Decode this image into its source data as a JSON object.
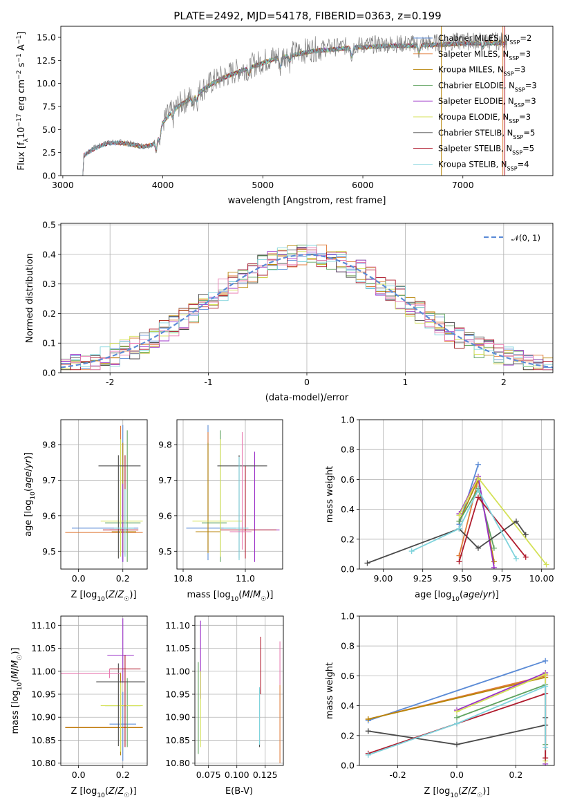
{
  "figure_title": "PLATE=2492, MJD=54178, FIBERID=0363, z=0.199",
  "colors": {
    "Chabrier MILES": "#5b8bd6",
    "Salpeter MILES": "#e07b39",
    "Kroupa MILES": "#b8860b",
    "Chabrier ELODIE": "#5fa35f",
    "Salpeter ELODIE": "#9b30c8",
    "Kroupa ELODIE": "#d4e157",
    "Chabrier STELIB": "#4a4a4a",
    "Salpeter STELIB": "#b01c2e",
    "Kroupa STELIB": "#7fd3dc",
    "observed": "#808080",
    "normal": "#5b8bd6",
    "pink": "#e879b0"
  },
  "chart_data": [
    {
      "type": "line",
      "name": "spectrum",
      "xlabel": "wavelength [Angstrom, rest frame]",
      "ylabel": "Flux [f_λ10^-17 erg cm^-2 s^-1 A^-1]",
      "xlim": [
        2980,
        7900
      ],
      "ylim": [
        0,
        16.2
      ],
      "xticks": [
        3000,
        4000,
        5000,
        6000,
        7000
      ],
      "yticks": [
        0.0,
        2.5,
        5.0,
        7.5,
        10.0,
        12.5,
        15.0
      ],
      "continuum": [
        [
          3200,
          0
        ],
        [
          3210,
          2.2
        ],
        [
          3300,
          2.9
        ],
        [
          3450,
          3.6
        ],
        [
          3600,
          3.6
        ],
        [
          3700,
          3.4
        ],
        [
          3800,
          3.2
        ],
        [
          3900,
          3.4
        ],
        [
          3950,
          4.5
        ],
        [
          4000,
          5.8
        ],
        [
          4100,
          7.2
        ],
        [
          4300,
          8.7
        ],
        [
          4500,
          10.2
        ],
        [
          4700,
          11.2
        ],
        [
          4900,
          12.0
        ],
        [
          5100,
          12.8
        ],
        [
          5300,
          13.3
        ],
        [
          5500,
          13.7
        ],
        [
          5700,
          13.9
        ],
        [
          5900,
          14.1
        ],
        [
          6100,
          14.2
        ],
        [
          6300,
          14.3
        ],
        [
          6500,
          14.3
        ],
        [
          6700,
          14.4
        ],
        [
          6900,
          14.5
        ],
        [
          7100,
          14.6
        ],
        [
          7300,
          14.6
        ],
        [
          7400,
          14.6
        ]
      ],
      "legend": [
        {
          "label": "Chabrier MILES, N",
          "n": "=2"
        },
        {
          "label": "Salpeter MILES, N",
          "n": "=3"
        },
        {
          "label": "Kroupa MILES, N",
          "n": "=3"
        },
        {
          "label": "Chabrier ELODIE, N",
          "n": "=3"
        },
        {
          "label": "Salpeter ELODIE, N",
          "n": "=3"
        },
        {
          "label": "Kroupa ELODIE, N",
          "n": "=3"
        },
        {
          "label": "Chabrier STELIB, N",
          "n": "=5"
        },
        {
          "label": "Salpeter STELIB, N",
          "n": "=5"
        },
        {
          "label": "Kroupa STELIB, N",
          "n": "=4"
        }
      ],
      "legend_sub": "SSP",
      "legend_placement": "right"
    },
    {
      "type": "histogram",
      "name": "residuals",
      "xlabel": "(data-model)/error",
      "ylabel": "Normed distribution",
      "xlim": [
        -2.5,
        2.5
      ],
      "ylim": [
        0,
        0.505
      ],
      "xticks": [
        -2,
        -1,
        0,
        1,
        2
      ],
      "yticks": [
        0.0,
        0.1,
        0.2,
        0.3,
        0.4,
        0.5
      ],
      "bin_width": 0.1,
      "legend_label": "N(0, 1)",
      "legend_placement": "top-right",
      "grid": true
    },
    {
      "type": "errorbar",
      "name": "age-vs-Z",
      "xlabel": "Z [log10(Z/Z☉)]",
      "ylabel": "age [log10(age/yr)]",
      "xlim": [
        -0.08,
        0.31
      ],
      "ylim": [
        9.45,
        9.87
      ],
      "xticks": [
        0.0,
        0.2
      ],
      "yticks": [
        9.5,
        9.6,
        9.7,
        9.8
      ],
      "points": [
        {
          "model": "Chabrier MILES",
          "x": 0.2,
          "xerr": [
            0.23,
            0.07
          ],
          "y": 9.565,
          "yerr": [
            0.095,
            0.29
          ]
        },
        {
          "model": "Salpeter MILES",
          "x": 0.19,
          "xerr": [
            0.25,
            0.1
          ],
          "y": 9.553,
          "yerr": [
            0.05,
            0.3
          ]
        },
        {
          "model": "Kroupa MILES",
          "x": 0.2,
          "xerr": [
            0.05,
            0.06
          ],
          "y": 9.555,
          "yerr": [
            0.06,
            0.25
          ]
        },
        {
          "model": "Chabrier ELODIE",
          "x": 0.22,
          "xerr": [
            0.1,
            0.06
          ],
          "y": 9.58,
          "yerr": [
            0.11,
            0.26
          ]
        },
        {
          "model": "Salpeter ELODIE",
          "x": 0.2,
          "xerr": [
            0.06,
            0.02
          ],
          "y": 9.56,
          "yerr": [
            0.09,
            0.13
          ]
        },
        {
          "model": "Kroupa ELODIE",
          "x": 0.19,
          "xerr": [
            0.09,
            0.1
          ],
          "y": 9.585,
          "yerr": [
            0.1,
            0.23
          ]
        },
        {
          "model": "Chabrier STELIB",
          "x": 0.18,
          "xerr": [
            0.09,
            0.1
          ],
          "y": 9.74,
          "yerr": [
            0.26,
            0.03
          ]
        },
        {
          "model": "Salpeter STELIB",
          "x": 0.21,
          "xerr": [
            0.1,
            0.06
          ],
          "y": 9.56,
          "yerr": [
            0.07,
            0.21
          ]
        },
        {
          "model": "Kroupa STELIB",
          "x": 0.21,
          "xerr": [
            0.05,
            0.04
          ],
          "y": 9.565,
          "yerr": [
            0.08,
            0.11
          ]
        }
      ]
    },
    {
      "type": "errorbar",
      "name": "age-vs-mass",
      "xlabel": "mass [log10(M/M☉)]",
      "xlim": [
        10.78,
        11.12
      ],
      "ylim": [
        9.45,
        9.87
      ],
      "xticks": [
        10.8,
        11.0
      ],
      "yticks": [
        9.5,
        9.6,
        9.7,
        9.8
      ],
      "points": [
        {
          "model": "Chabrier MILES",
          "x": 10.88,
          "xerr": [
            0.07,
            0.09
          ],
          "y": 9.565,
          "yerr": [
            0.09,
            0.29
          ]
        },
        {
          "model": "Salpeter MILES",
          "x": 10.88,
          "xerr": [
            0.04,
            0.04
          ],
          "y": 9.555,
          "yerr": [
            0.05,
            0.28
          ]
        },
        {
          "model": "Kroupa MILES",
          "x": 10.88,
          "xerr": [
            0.04,
            0.04
          ],
          "y": 9.555,
          "yerr": [
            0.06,
            0.25
          ]
        },
        {
          "model": "Chabrier ELODIE",
          "x": 10.92,
          "xerr": [
            0.06,
            0.02
          ],
          "y": 9.58,
          "yerr": [
            0.11,
            0.26
          ]
        },
        {
          "model": "Salpeter ELODIE",
          "x": 11.03,
          "xerr": [
            0.03,
            0.08
          ],
          "y": 9.56,
          "yerr": [
            0.09,
            0.22
          ]
        },
        {
          "model": "Kroupa ELODIE",
          "x": 10.92,
          "xerr": [
            0.09,
            0.07
          ],
          "y": 9.585,
          "yerr": [
            0.1,
            0.23
          ]
        },
        {
          "model": "Chabrier STELIB",
          "x": 10.98,
          "xerr": [
            0.07,
            0.09
          ],
          "y": 9.74,
          "yerr": [
            0.26,
            0.03
          ]
        },
        {
          "model": "Salpeter STELIB",
          "x": 11.0,
          "xerr": [
            0.08,
            0.1
          ],
          "y": 9.56,
          "yerr": [
            0.08,
            0.18
          ]
        },
        {
          "model": "Kroupa STELIB",
          "x": 10.98,
          "xerr": [
            0.05,
            0.03
          ],
          "y": 9.565,
          "yerr": [
            0.09,
            0.2
          ]
        },
        {
          "model": "pink",
          "x": 10.99,
          "xerr": [
            0.04,
            0.03
          ],
          "y": 9.555,
          "yerr": [
            0.05,
            0.28
          ]
        }
      ]
    },
    {
      "type": "line",
      "name": "mass-weight-vs-age",
      "xlabel": "age [log10(age/yr)]",
      "ylabel": "mass weight",
      "xlim": [
        8.85,
        10.08
      ],
      "ylim": [
        0,
        1
      ],
      "xticks": [
        9.0,
        9.25,
        9.5,
        9.75,
        10.0
      ],
      "yticks": [
        0.0,
        0.2,
        0.4,
        0.6,
        0.8,
        1.0
      ],
      "series": [
        {
          "model": "Chabrier MILES",
          "points": [
            [
              9.48,
              0.3
            ],
            [
              9.6,
              0.7
            ]
          ]
        },
        {
          "model": "Salpeter MILES",
          "points": [
            [
              9.48,
              0.09
            ],
            [
              9.6,
              0.6
            ]
          ]
        },
        {
          "model": "Kroupa MILES",
          "points": [
            [
              9.48,
              0.32
            ],
            [
              9.6,
              0.6
            ],
            [
              9.7,
              0.05
            ]
          ]
        },
        {
          "model": "Chabrier ELODIE",
          "points": [
            [
              9.48,
              0.32
            ],
            [
              9.6,
              0.54
            ],
            [
              9.7,
              0.14
            ]
          ]
        },
        {
          "model": "Salpeter ELODIE",
          "points": [
            [
              9.48,
              0.37
            ],
            [
              9.6,
              0.62
            ],
            [
              9.7,
              0.01
            ]
          ]
        },
        {
          "model": "Kroupa ELODIE",
          "points": [
            [
              9.48,
              0.36
            ],
            [
              9.6,
              0.61
            ],
            [
              10.03,
              0.03
            ]
          ]
        },
        {
          "model": "Chabrier STELIB",
          "points": [
            [
              8.9,
              0.04
            ],
            [
              9.48,
              0.27
            ],
            [
              9.6,
              0.14
            ],
            [
              9.84,
              0.32
            ],
            [
              9.9,
              0.23
            ]
          ]
        },
        {
          "model": "Salpeter STELIB",
          "points": [
            [
              9.48,
              0.05
            ],
            [
              9.6,
              0.48
            ],
            [
              9.9,
              0.08
            ]
          ]
        },
        {
          "model": "Kroupa STELIB",
          "points": [
            [
              9.18,
              0.12
            ],
            [
              9.48,
              0.27
            ],
            [
              9.6,
              0.53
            ],
            [
              9.84,
              0.07
            ]
          ]
        }
      ]
    },
    {
      "type": "errorbar",
      "name": "mass-vs-Z",
      "xlabel": "Z [log10(Z/Z☉)]",
      "ylabel": "mass [log10(M/M☉)]",
      "xlim": [
        -0.08,
        0.31
      ],
      "ylim": [
        10.795,
        11.12
      ],
      "xticks": [
        0.0,
        0.2
      ],
      "yticks": [
        10.8,
        10.85,
        10.9,
        10.95,
        11.0,
        11.05,
        11.1
      ],
      "points": [
        {
          "model": "Chabrier MILES",
          "x": 0.2,
          "xerr": [
            0.06,
            0.06
          ],
          "y": 10.885,
          "yerr": [
            0.08,
            0.07
          ]
        },
        {
          "model": "Salpeter MILES",
          "x": 0.19,
          "xerr": [
            0.25,
            0.1
          ],
          "y": 10.878,
          "yerr": [
            0.05,
            0.1
          ]
        },
        {
          "model": "Kroupa MILES",
          "x": 0.19,
          "xerr": [
            0.25,
            0.1
          ],
          "y": 10.877,
          "yerr": [
            0.06,
            0.12
          ]
        },
        {
          "model": "Chabrier ELODIE",
          "x": 0.22,
          "xerr": [
            0.1,
            0.06
          ],
          "y": 10.925,
          "yerr": [
            0.09,
            0.06
          ]
        },
        {
          "model": "Salpeter ELODIE",
          "x": 0.2,
          "xerr": [
            0.07,
            0.05
          ],
          "y": 11.035,
          "yerr": [
            0.06,
            0.08
          ]
        },
        {
          "model": "Kroupa ELODIE",
          "x": 0.19,
          "xerr": [
            0.09,
            0.1
          ],
          "y": 10.925,
          "yerr": [
            0.1,
            0.05
          ]
        },
        {
          "model": "Chabrier STELIB",
          "x": 0.18,
          "xerr": [
            0.1,
            0.12
          ],
          "y": 10.977,
          "yerr": [
            0.14,
            0.04
          ]
        },
        {
          "model": "Salpeter STELIB",
          "x": 0.21,
          "xerr": [
            0.07,
            0.07
          ],
          "y": 11.005,
          "yerr": [
            0.17,
            0.03
          ]
        },
        {
          "model": "pink",
          "x": 0.14,
          "xerr": [
            0.25,
            0.05
          ],
          "y": 10.995,
          "yerr": [
            0.01,
            0.01
          ]
        }
      ]
    },
    {
      "type": "errorbar",
      "name": "mass-vs-EBV",
      "xlabel": "E(B-V)",
      "xlim": [
        0.063,
        0.141
      ],
      "ylim": [
        10.795,
        11.12
      ],
      "xticks": [
        0.075,
        0.1,
        0.125
      ],
      "xtick_labels": [
        "0.075",
        "0.100",
        "0.125"
      ],
      "yticks": [
        10.8,
        10.85,
        10.9,
        10.95,
        11.0,
        11.05,
        11.1
      ],
      "vbars": [
        {
          "model": "Chabrier ELODIE",
          "x": 0.066,
          "y0": 10.82,
          "y1": 11.02
        },
        {
          "model": "Salpeter ELODIE",
          "x": 0.068,
          "y0": 10.94,
          "y1": 11.11
        },
        {
          "model": "Kroupa ELODIE",
          "x": 0.068,
          "y0": 10.835,
          "y1": 11.0
        },
        {
          "model": "Chabrier STELIB",
          "x": 0.12,
          "y0": 10.835,
          "y1": 10.96
        },
        {
          "model": "Salpeter STELIB",
          "x": 0.121,
          "y0": 10.95,
          "y1": 11.075
        },
        {
          "model": "Kroupa STELIB",
          "x": 0.12,
          "y0": 10.84,
          "y1": 10.965
        },
        {
          "model": "Salpeter MILES",
          "x": 0.138,
          "y0": 10.8,
          "y1": 10.97
        },
        {
          "model": "pink",
          "x": 0.138,
          "y0": 10.97,
          "y1": 11.065
        }
      ]
    },
    {
      "type": "line",
      "name": "mass-weight-vs-Z",
      "xlabel": "Z [log10(Z/Z☉)]",
      "ylabel": "mass weight",
      "xlim": [
        -0.33,
        0.33
      ],
      "ylim": [
        0,
        1
      ],
      "xticks": [
        -0.2,
        0.0,
        0.2
      ],
      "yticks": [
        0.0,
        0.2,
        0.4,
        0.6,
        0.8,
        1.0
      ],
      "series": [
        {
          "model": "Chabrier MILES",
          "points": [
            [
              -0.3,
              0.3
            ],
            [
              0.3,
              0.7
            ]
          ]
        },
        {
          "model": "Salpeter MILES",
          "points": [
            [
              -0.3,
              0.31
            ],
            [
              0.3,
              0.6
            ]
          ]
        },
        {
          "model": "Kroupa MILES",
          "points": [
            [
              -0.3,
              0.31
            ],
            [
              0.3,
              0.59
            ]
          ]
        },
        {
          "model": "Chabrier ELODIE",
          "points": [
            [
              0.0,
              0.32
            ],
            [
              0.3,
              0.54
            ],
            [
              0.3,
              0.14
            ]
          ]
        },
        {
          "model": "Salpeter ELODIE",
          "points": [
            [
              0.0,
              0.37
            ],
            [
              0.3,
              0.62
            ],
            [
              0.3,
              0.01
            ]
          ]
        },
        {
          "model": "Kroupa ELODIE",
          "points": [
            [
              0.0,
              0.36
            ],
            [
              0.3,
              0.61
            ],
            [
              0.3,
              0.03
            ]
          ]
        },
        {
          "model": "Chabrier STELIB",
          "points": [
            [
              -0.3,
              0.23
            ],
            [
              0.0,
              0.14
            ],
            [
              0.3,
              0.27
            ],
            [
              0.3,
              0.32
            ]
          ]
        },
        {
          "model": "Salpeter STELIB",
          "points": [
            [
              -0.3,
              0.08
            ],
            [
              0.0,
              0.28
            ],
            [
              0.3,
              0.48
            ],
            [
              0.3,
              0.05
            ]
          ]
        },
        {
          "model": "Kroupa STELIB",
          "points": [
            [
              -0.3,
              0.07
            ],
            [
              0.0,
              0.28
            ],
            [
              0.3,
              0.53
            ],
            [
              0.3,
              0.12
            ]
          ]
        }
      ]
    }
  ]
}
